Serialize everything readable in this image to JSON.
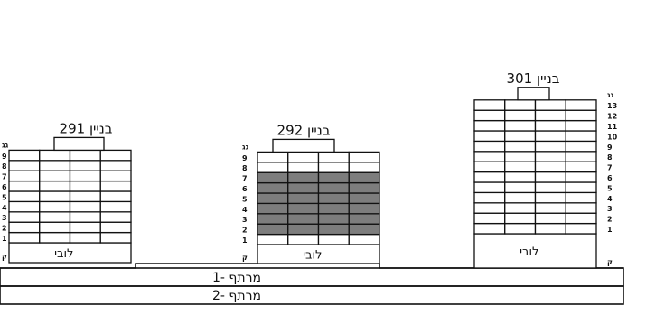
{
  "colors": {
    "line": "#111111",
    "highlight": "#7d7d7d",
    "background": "#ffffff"
  },
  "buildings": [
    {
      "id": "b291",
      "title": "בניין 291",
      "lobby_label": "לובי",
      "floor_labels": [
        "ק",
        "1",
        "2",
        "3",
        "4",
        "5",
        "6",
        "7",
        "8",
        "9",
        "גג"
      ],
      "highlighted_floors": []
    },
    {
      "id": "b292",
      "title": "בניין 292",
      "lobby_label": "לובי",
      "floor_labels": [
        "ק",
        "1",
        "2",
        "3",
        "4",
        "5",
        "6",
        "7",
        "8",
        "9",
        "גג"
      ],
      "highlighted_floors": [
        "2",
        "3",
        "4",
        "5",
        "6",
        "7"
      ]
    },
    {
      "id": "b301",
      "title": "בניין 301",
      "lobby_label": "לובי",
      "floor_labels": [
        "ק",
        "1",
        "2",
        "3",
        "4",
        "5",
        "6",
        "7",
        "8",
        "9",
        "10",
        "11",
        "12",
        "13",
        "גג"
      ],
      "highlighted_floors": []
    }
  ],
  "basements": [
    {
      "label": "מרתף -1"
    },
    {
      "label": "מרתף -2"
    }
  ]
}
